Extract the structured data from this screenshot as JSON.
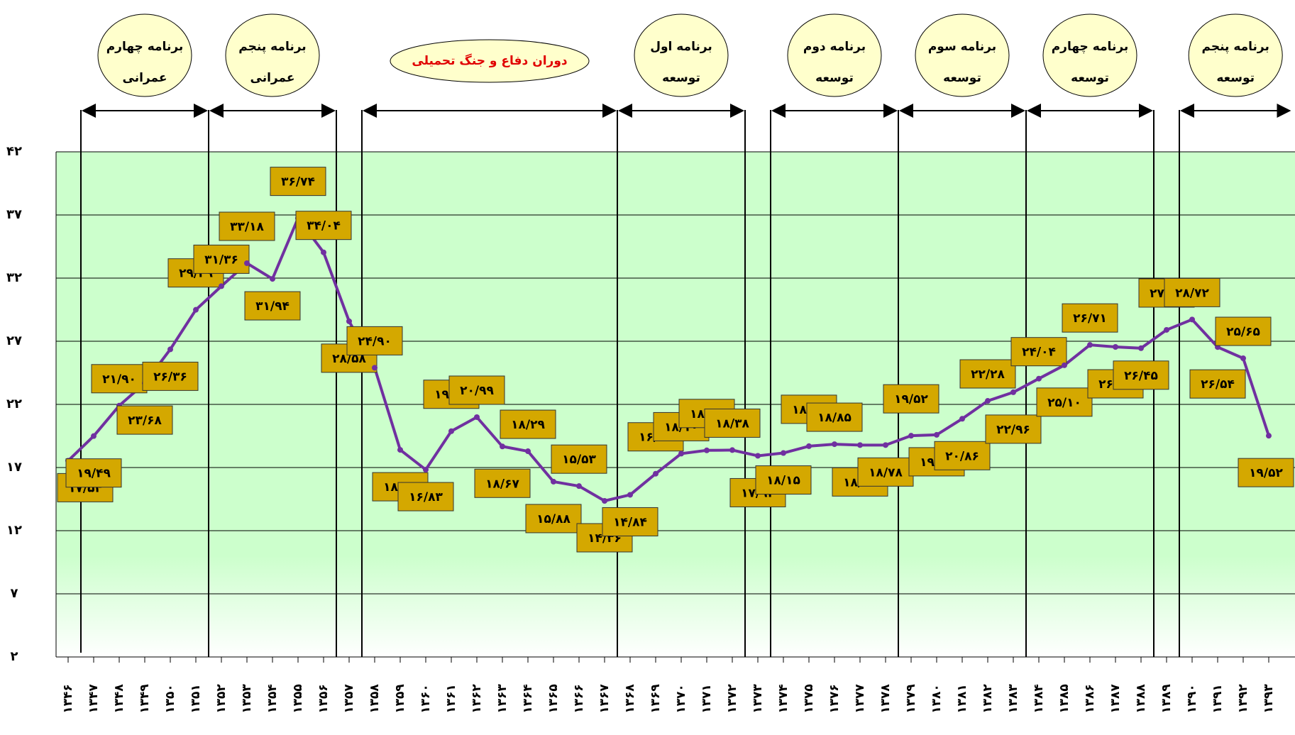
{
  "chart_data": {
    "type": "line",
    "categories": [
      "۱۳۴۶",
      "۱۳۴۷",
      "۱۳۴۸",
      "۱۳۴۹",
      "۱۳۵۰",
      "۱۳۵۱",
      "۱۳۵۲",
      "۱۳۵۳",
      "۱۳۵۴",
      "۱۳۵۵",
      "۱۳۵۶",
      "۱۳۵۷",
      "۱۳۵۸",
      "۱۳۵۹",
      "۱۳۶۰",
      "۱۳۶۱",
      "۱۳۶۲",
      "۱۳۶۳",
      "۱۳۶۴",
      "۱۳۶۵",
      "۱۳۶۶",
      "۱۳۶۷",
      "۱۳۶۸",
      "۱۳۶۹",
      "۱۳۷۰",
      "۱۳۷۱",
      "۱۳۷۲",
      "۱۳۷۳",
      "۱۳۷۴",
      "۱۳۷۵",
      "۱۳۷۶",
      "۱۳۷۷",
      "۱۳۷۸",
      "۱۳۷۹",
      "۱۳۸۰",
      "۱۳۸۱",
      "۱۳۸۲",
      "۱۳۸۳",
      "۱۳۸۴",
      "۱۳۸۵",
      "۱۳۸۶",
      "۱۳۸۷",
      "۱۳۸۸",
      "۱۳۸۹",
      "۱۳۹۰",
      "۱۳۹۱",
      "۱۳۹۲",
      "۱۳۹۳"
    ],
    "values": [
      17.54,
      19.49,
      21.9,
      23.68,
      26.36,
      29.49,
      31.36,
      33.18,
      31.94,
      36.74,
      34.04,
      28.58,
      24.9,
      18.4,
      16.83,
      19.88,
      20.99,
      18.67,
      18.29,
      15.88,
      15.53,
      14.36,
      14.84,
      16.51,
      18.1,
      18.36,
      18.38,
      17.93,
      18.15,
      18.69,
      18.85,
      18.78,
      18.78,
      19.52,
      19.59,
      20.86,
      22.28,
      22.96,
      24.04,
      25.1,
      26.71,
      26.55,
      26.45,
      27.9,
      28.72,
      26.54,
      25.65,
      19.52
    ],
    "value_labels": [
      "۱۷/۵۴",
      "۱۹/۴۹",
      "۲۱/۹۰",
      "۲۳/۶۸",
      "۲۶/۳۶",
      "۲۹/۴۹",
      "۳۱/۳۶",
      "۳۳/۱۸",
      "۳۱/۹۴",
      "۳۶/۷۴",
      "۳۴/۰۴",
      "۲۸/۵۸",
      "۲۴/۹۰",
      "۱۸/۴۰",
      "۱۶/۸۳",
      "۱۹/۸۸",
      "۲۰/۹۹",
      "۱۸/۶۷",
      "۱۸/۲۹",
      "۱۵/۸۸",
      "۱۵/۵۳",
      "۱۴/۳۶",
      "۱۴/۸۴",
      "۱۶/۵۱",
      "۱۸/۱۰",
      "۱۸/۳۶",
      "۱۸/۳۸",
      "۱۷/۹۳",
      "۱۸/۱۵",
      "۱۸/۶۹",
      "۱۸/۸۵",
      "۱۸/۷۸",
      "۱۸/۷۸",
      "۱۹/۵۲",
      "۱۹/۵۹",
      "۲۰/۸۶",
      "۲۲/۲۸",
      "۲۲/۹۶",
      "۲۴/۰۴",
      "۲۵/۱۰",
      "۲۶/۷۱",
      "۲۶/۵۵",
      "۲۶/۴۵",
      "۲۷/۹۰",
      "۲۸/۷۲",
      "۲۶/۵۴",
      "۲۵/۶۵",
      "۱۹/۵۲"
    ],
    "color": "#7030a0",
    "ylim": [
      2,
      42
    ],
    "yticks": [
      {
        "value": 2,
        "label": "۲"
      },
      {
        "value": 7,
        "label": "۷"
      },
      {
        "value": 12,
        "label": "۱۲"
      },
      {
        "value": 17,
        "label": "۱۷"
      },
      {
        "value": 22,
        "label": "۲۲"
      },
      {
        "value": 27,
        "label": "۲۷"
      },
      {
        "value": 32,
        "label": "۳۲"
      },
      {
        "value": 37,
        "label": "۳۷"
      },
      {
        "value": 42,
        "label": "۴۲"
      }
    ],
    "grid": true,
    "annotations": [
      {
        "lines": [
          "برنامه چهارم",
          "عمرانی"
        ]
      },
      {
        "lines": [
          "برنامه پنجم",
          "عمرانی"
        ]
      },
      {
        "lines": [
          "دوران دفاع و جنگ تحمیلی"
        ]
      },
      {
        "lines": [
          "برنامه اول",
          "توسعه"
        ]
      },
      {
        "lines": [
          "برنامه دوم",
          "توسعه"
        ]
      },
      {
        "lines": [
          "برنامه سوم",
          "توسعه"
        ]
      },
      {
        "lines": [
          "برنامه چهارم",
          "توسعه"
        ]
      },
      {
        "lines": [
          "برنامه پنجم",
          "توسعه"
        ]
      }
    ]
  }
}
